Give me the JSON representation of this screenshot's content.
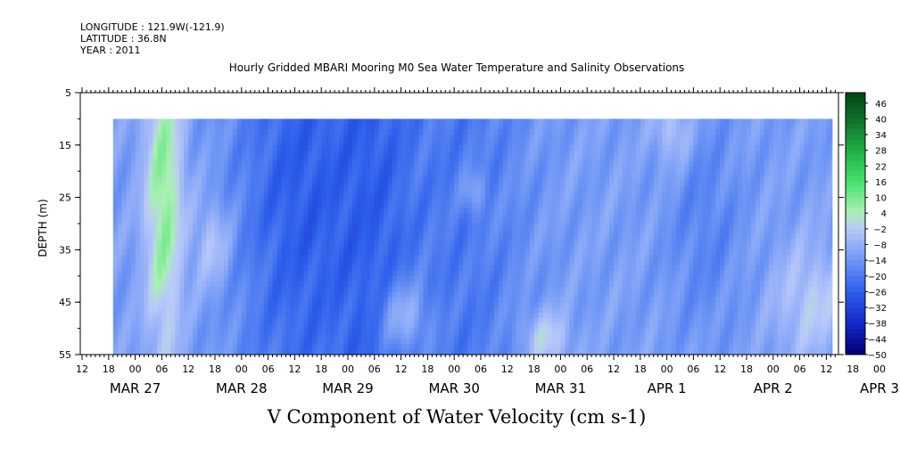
{
  "header": {
    "longitude": "LONGITUDE : 121.9W(-121.9)",
    "latitude": "LATITUDE : 36.8N",
    "year": "YEAR : 2011"
  },
  "chart_data": {
    "type": "heatmap",
    "title": "Hourly Gridded MBARI Mooring M0 Sea Water Temperature and Salinity Observations",
    "xlabel": "V Component of Water Velocity (cm s-1)",
    "ylabel": "DEPTH (m)",
    "ylim": [
      55,
      5
    ],
    "y_ticks": [
      5,
      15,
      25,
      35,
      45,
      55
    ],
    "x_hour_ticks": [
      "12",
      "18",
      "00",
      "06",
      "12",
      "18",
      "00",
      "06",
      "12",
      "18",
      "00",
      "06",
      "12",
      "18",
      "00",
      "06",
      "12",
      "18",
      "00",
      "06",
      "12",
      "18",
      "00",
      "06",
      "12",
      "18",
      "00",
      "06",
      "12",
      "18",
      "00",
      "06",
      "12"
    ],
    "x_date_labels": [
      "MAR 27",
      "MAR 28",
      "MAR 29",
      "MAR 30",
      "MAR 31",
      "APR  1",
      "APR  2",
      "APR  3"
    ],
    "data_start": "MAR 27 19:00",
    "data_depth_top": 10,
    "colorbar": {
      "levels": [
        46,
        40,
        34,
        28,
        22,
        16,
        10,
        4,
        -2,
        -8,
        -14,
        -20,
        -26,
        -32,
        -38,
        -44,
        -50
      ],
      "min": -50,
      "max": 50
    },
    "field_description": "V velocity mostly between -30 and 0 cm/s; strongest negative (blue) near MAR 29 12:00 and MAR 30 06:00; positive (green) bands near MAR 28 06:00, late MAR 29 deep, MAR 30 18:00 deep, and APR 2 18:00 to APR 3 12:00 deep"
  }
}
